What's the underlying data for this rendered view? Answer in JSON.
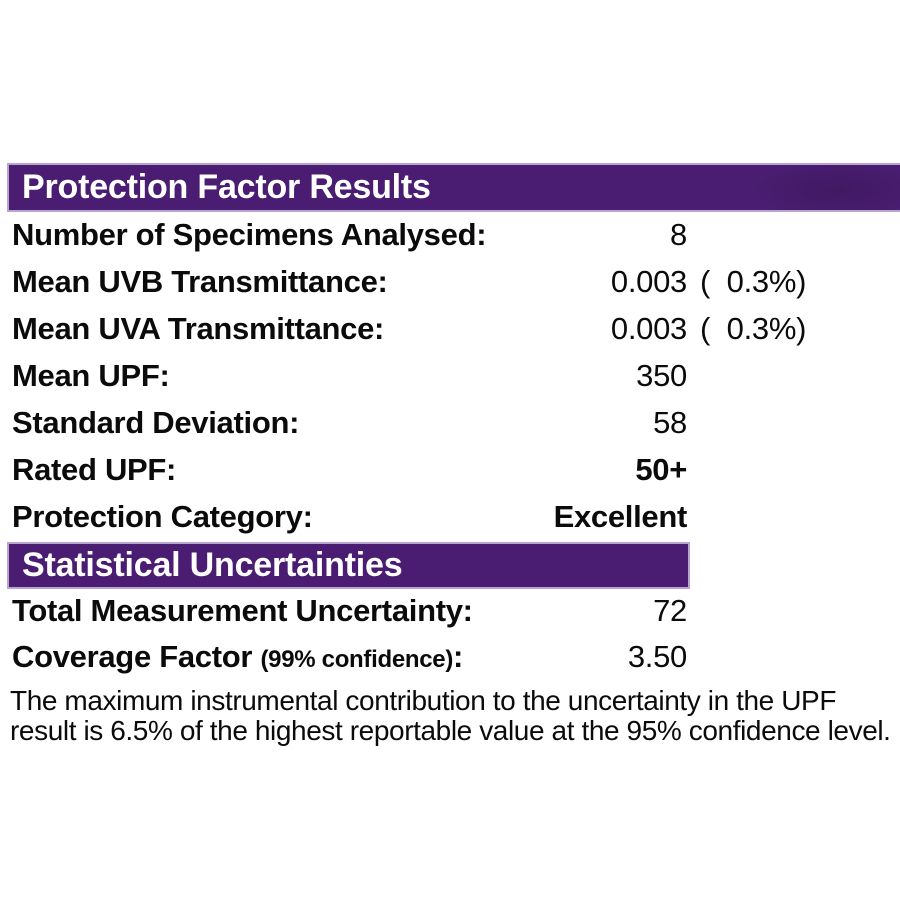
{
  "colors": {
    "bar_background": "#4a1d72",
    "bar_border": "#b9a4cf",
    "bar_text": "#ffffff",
    "body_text": "#0b0b0b",
    "page_background": "#ffffff"
  },
  "sections": [
    {
      "title": "Protection Factor Results",
      "rows": [
        {
          "label": "Number of Specimens Analysed:",
          "value": "8",
          "paren": ""
        },
        {
          "label": "Mean UVB Transmittance:",
          "value": "0.003",
          "paren": "(  0.3%)"
        },
        {
          "label": "Mean UVA Transmittance:",
          "value": "0.003",
          "paren": "(  0.3%)"
        },
        {
          "label": "Mean UPF:",
          "value": "350",
          "paren": ""
        },
        {
          "label": "Standard Deviation:",
          "value": "58",
          "paren": ""
        },
        {
          "label": "Rated UPF:",
          "value": "50+",
          "paren": ""
        },
        {
          "label": "Protection Category:",
          "value": "Excellent",
          "paren": ""
        }
      ]
    },
    {
      "title": "Statistical Uncertainties",
      "rows": [
        {
          "label": "Total Measurement Uncertainty:",
          "value": "72",
          "paren": ""
        },
        {
          "label": "Coverage Factor ",
          "label_note": "(99% confidence)",
          "label_suffix": ":",
          "value": "3.50",
          "paren": ""
        }
      ]
    }
  ],
  "footnote": {
    "line1": "The maximum instrumental contribution to the uncertainty in the UPF",
    "line2": "result is 6.5% of the highest reportable value at the 95% confidence level."
  }
}
